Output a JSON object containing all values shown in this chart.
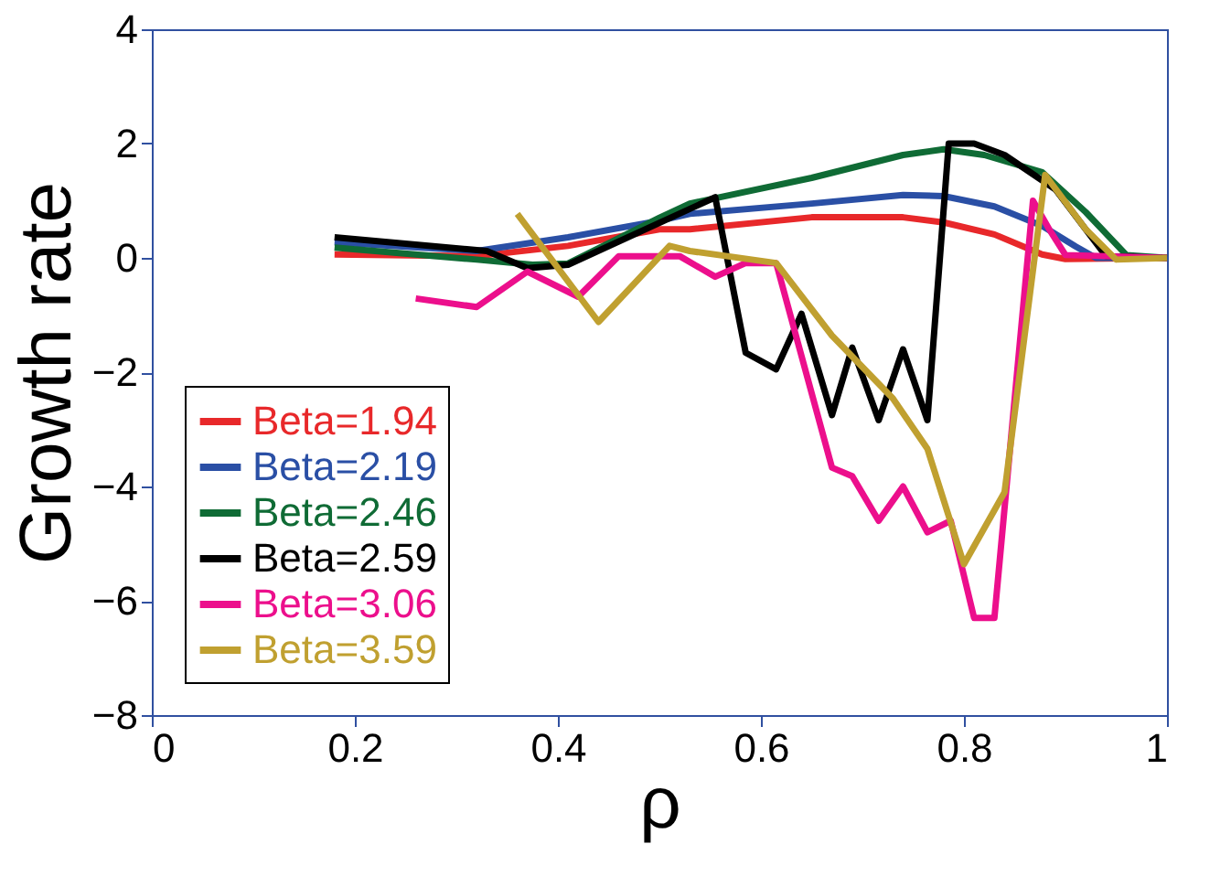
{
  "chart_data": {
    "type": "line",
    "xlabel": "ρ",
    "ylabel": "Growth rate",
    "xlim": [
      0,
      1
    ],
    "ylim": [
      -8,
      4
    ],
    "xticks": [
      0,
      0.2,
      0.4,
      0.6,
      0.8,
      1
    ],
    "yticks": [
      -8,
      -6,
      -4,
      -2,
      0,
      2,
      4
    ],
    "grid": false,
    "legend": "bottom left",
    "marker": "none",
    "line_style": "solid",
    "series": [
      {
        "name": "Beta=1.94",
        "color": "#e8282a",
        "x": [
          0.18,
          0.32,
          0.41,
          0.5,
          0.53,
          0.65,
          0.74,
          0.78,
          0.83,
          0.877,
          0.9,
          1.0
        ],
        "values": [
          0.06,
          0.03,
          0.21,
          0.5,
          0.5,
          0.71,
          0.71,
          0.62,
          0.41,
          0.06,
          -0.02,
          0
        ]
      },
      {
        "name": "Beta=2.19",
        "color": "#2a4fa5",
        "x": [
          0.18,
          0.32,
          0.41,
          0.5,
          0.53,
          0.65,
          0.74,
          0.78,
          0.83,
          0.877,
          0.91,
          0.93,
          1.0
        ],
        "values": [
          0.27,
          0.12,
          0.36,
          0.65,
          0.77,
          0.95,
          1.1,
          1.08,
          0.9,
          0.56,
          0.2,
          0,
          0
        ]
      },
      {
        "name": "Beta=2.46",
        "color": "#0f6b35",
        "x": [
          0.18,
          0.32,
          0.375,
          0.41,
          0.5,
          0.53,
          0.65,
          0.74,
          0.78,
          0.82,
          0.877,
          0.92,
          0.96,
          1.0
        ],
        "values": [
          0.18,
          -0.03,
          -0.12,
          -0.1,
          0.7,
          0.95,
          1.4,
          1.8,
          1.9,
          1.8,
          1.5,
          0.8,
          0.05,
          0
        ]
      },
      {
        "name": "Beta=2.59",
        "color": "#000000",
        "x": [
          0.18,
          0.33,
          0.37,
          0.41,
          0.555,
          0.585,
          0.615,
          0.64,
          0.67,
          0.69,
          0.716,
          0.74,
          0.764,
          0.785,
          0.81,
          0.84,
          0.89,
          0.94,
          1.0
        ],
        "values": [
          0.36,
          0.12,
          -0.18,
          -0.12,
          1.06,
          -1.66,
          -1.95,
          -0.98,
          -2.75,
          -1.57,
          -2.84,
          -1.6,
          -2.84,
          2.0,
          2.0,
          1.8,
          1.2,
          0.03,
          0
        ]
      },
      {
        "name": "Beta=3.06",
        "color": "#ec0f8c",
        "x": [
          0.26,
          0.32,
          0.37,
          0.42,
          0.46,
          0.52,
          0.555,
          0.585,
          0.615,
          0.67,
          0.69,
          0.716,
          0.74,
          0.764,
          0.787,
          0.81,
          0.83,
          0.868,
          0.884,
          0.9,
          1.0
        ],
        "values": [
          -0.71,
          -0.86,
          -0.24,
          -0.68,
          0.03,
          0.03,
          -0.33,
          -0.09,
          -0.09,
          -3.67,
          -3.82,
          -4.6,
          -4.0,
          -4.8,
          -4.6,
          -6.3,
          -6.3,
          1.0,
          0.5,
          0.05,
          0
        ]
      },
      {
        "name": "Beta=3.59",
        "color": "#c0a030",
        "x": [
          0.36,
          0.44,
          0.51,
          0.53,
          0.615,
          0.67,
          0.73,
          0.764,
          0.8,
          0.84,
          0.88,
          0.92,
          0.95,
          1.0
        ],
        "values": [
          0.77,
          -1.12,
          0.21,
          0.12,
          -0.09,
          -1.36,
          -2.46,
          -3.34,
          -5.36,
          -4.1,
          1.45,
          0.5,
          -0.03,
          0
        ]
      }
    ]
  }
}
